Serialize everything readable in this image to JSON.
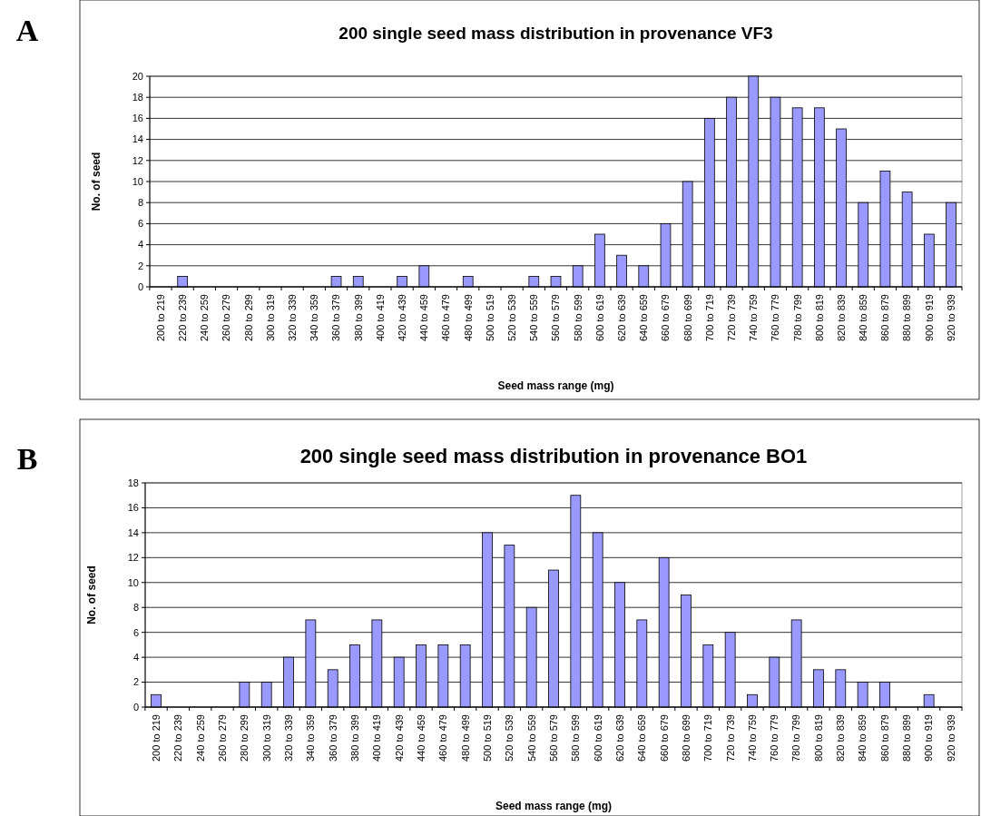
{
  "chart_data": [
    {
      "type": "bar",
      "title": "200 single seed mass distribution in provenance VF3",
      "xlabel": "Seed mass range (mg)",
      "ylabel": "No. of seed",
      "annotations": [
        "A"
      ],
      "categories": [
        "200 to 219",
        "220 to 239",
        "240 to 259",
        "260 to 279",
        "280 to 299",
        "300 to 319",
        "320 to 339",
        "340 to 359",
        "360 to 379",
        "380 to 399",
        "400 to 419",
        "420 to 439",
        "440 to 459",
        "460 to 479",
        "480 to 499",
        "500 to 519",
        "520 to 539",
        "540 to 559",
        "560 to 579",
        "580 to 599",
        "600 to 619",
        "620 to 639",
        "640 to 659",
        "660 to 679",
        "680 to 699",
        "700 to 719",
        "720 to 739",
        "740 to 759",
        "760 to 779",
        "780 to 799",
        "800 to 819",
        "820 to 839",
        "840 to 859",
        "860 to 879",
        "880 to 899",
        "900 to 919",
        "920 to 939"
      ],
      "values": [
        0,
        1,
        0,
        0,
        0,
        0,
        0,
        0,
        1,
        1,
        0,
        1,
        2,
        0,
        1,
        0,
        0,
        1,
        1,
        2,
        5,
        3,
        2,
        6,
        10,
        16,
        18,
        20,
        18,
        17,
        17,
        15,
        8,
        11,
        9,
        5,
        8
      ],
      "color": "#9999ff",
      "ylim": [
        0,
        20
      ],
      "yticks": [
        0,
        2,
        4,
        6,
        8,
        10,
        12,
        14,
        16,
        18,
        20
      ],
      "grid": "y"
    },
    {
      "type": "bar",
      "title": "200 single seed mass distribution in provenance BO1",
      "xlabel": "Seed mass range (mg)",
      "ylabel": "No. of seed",
      "annotations": [
        "B"
      ],
      "categories": [
        "200 to 219",
        "220 to 239",
        "240 to 259",
        "260 to 279",
        "280 to 299",
        "300 to 319",
        "320 to 339",
        "340 to 359",
        "360 to 379",
        "380 to 399",
        "400 to 419",
        "420 to 439",
        "440 to 459",
        "460 to 479",
        "480 to 499",
        "500 to 519",
        "520 to 539",
        "540 to 559",
        "560 to 579",
        "580 to 599",
        "600 to 619",
        "620 to 639",
        "640 to 659",
        "660 to 679",
        "680 to 699",
        "700 to 719",
        "720 to 739",
        "740 to 759",
        "760 to 779",
        "780 to 799",
        "800 to 819",
        "820 to 839",
        "840 to 859",
        "860 to 879",
        "880 to 899",
        "900 to 919",
        "920 to 939"
      ],
      "values": [
        1,
        0,
        0,
        0,
        2,
        2,
        4,
        7,
        3,
        5,
        7,
        4,
        5,
        5,
        5,
        14,
        13,
        8,
        11,
        17,
        14,
        10,
        7,
        12,
        9,
        5,
        6,
        1,
        4,
        7,
        3,
        3,
        2,
        2,
        0,
        1,
        0
      ],
      "color": "#9999ff",
      "ylim": [
        0,
        18
      ],
      "yticks": [
        0,
        2,
        4,
        6,
        8,
        10,
        12,
        14,
        16,
        18
      ],
      "grid": "y"
    }
  ]
}
